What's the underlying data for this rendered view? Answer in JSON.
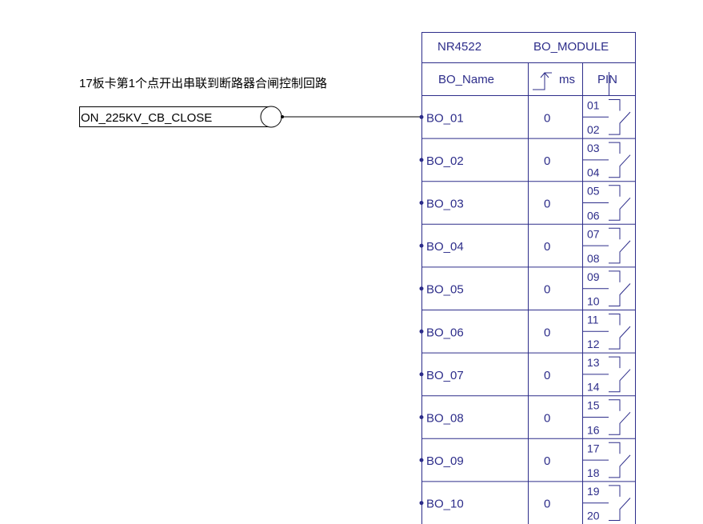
{
  "annotation": "17板卡第1个点开出串联到断路器合闸控制回路",
  "signal_box": {
    "label": "ON_225KV_CB_CLOSE"
  },
  "module": {
    "model": "NR4522",
    "title": "BO_MODULE",
    "headers": {
      "name": "BO_Name",
      "delay_unit": "ms",
      "pin": "PIN"
    },
    "rows": [
      {
        "name": "BO_01",
        "delay": "0",
        "pins": [
          "01",
          "02"
        ]
      },
      {
        "name": "BO_02",
        "delay": "0",
        "pins": [
          "03",
          "04"
        ]
      },
      {
        "name": "BO_03",
        "delay": "0",
        "pins": [
          "05",
          "06"
        ]
      },
      {
        "name": "BO_04",
        "delay": "0",
        "pins": [
          "07",
          "08"
        ]
      },
      {
        "name": "BO_05",
        "delay": "0",
        "pins": [
          "09",
          "10"
        ]
      },
      {
        "name": "BO_06",
        "delay": "0",
        "pins": [
          "11",
          "12"
        ]
      },
      {
        "name": "BO_07",
        "delay": "0",
        "pins": [
          "13",
          "14"
        ]
      },
      {
        "name": "BO_08",
        "delay": "0",
        "pins": [
          "15",
          "16"
        ]
      },
      {
        "name": "BO_09",
        "delay": "0",
        "pins": [
          "17",
          "18"
        ]
      },
      {
        "name": "BO_10",
        "delay": "0",
        "pins": [
          "19",
          "20"
        ]
      }
    ]
  },
  "colors": {
    "line": "#2d2d8a",
    "text": "#2d2d8a",
    "annotation": "#000000"
  }
}
